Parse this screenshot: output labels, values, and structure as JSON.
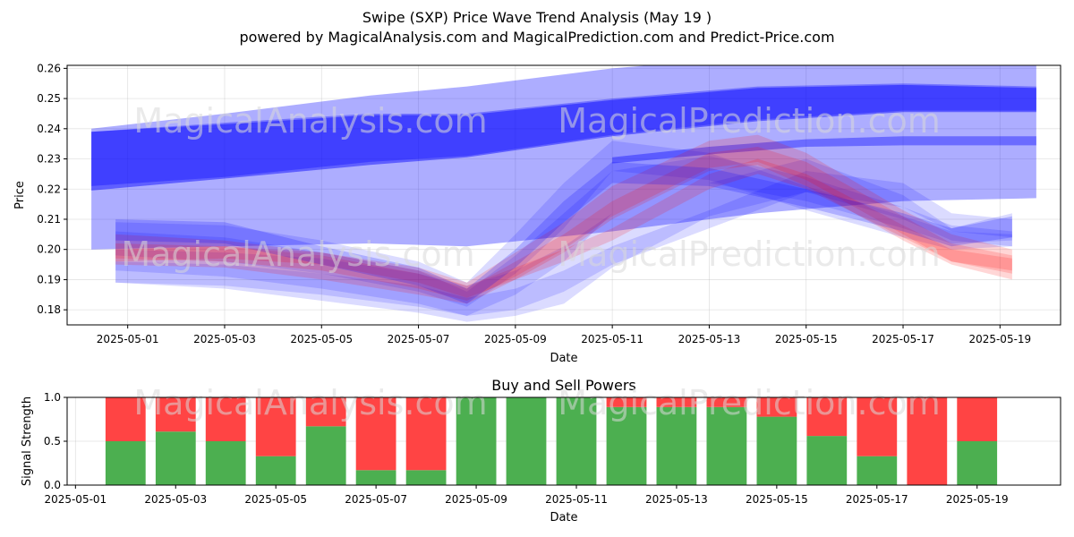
{
  "title": "Swipe (SXP) Price Wave Trend Analysis (May 19 )",
  "subtitle": "powered by MagicalAnalysis.com and MagicalPrediction.com and Predict-Price.com",
  "watermarks": [
    "MagicalAnalysis.com",
    "MagicalPrediction.com"
  ],
  "colors": {
    "blue": "#0000ff",
    "red": "#ff0000",
    "buy": "#4caf50",
    "sell": "#ff4444"
  },
  "chart_data": [
    {
      "type": "area",
      "title": "",
      "xlabel": "Date",
      "ylabel": "Price",
      "ylim": [
        0.175,
        0.261
      ],
      "xlim": [
        "2025-04-29T18:00",
        "2025-05-20T06:00"
      ],
      "x_ticks": [
        "2025-05-01",
        "2025-05-03",
        "2025-05-05",
        "2025-05-07",
        "2025-05-09",
        "2025-05-11",
        "2025-05-13",
        "2025-05-15",
        "2025-05-17",
        "2025-05-19"
      ],
      "y_ticks": [
        0.18,
        0.19,
        0.2,
        0.21,
        0.22,
        0.23,
        0.24,
        0.25,
        0.26
      ],
      "grid": true,
      "bands": [
        {
          "color": "blue",
          "opacity": 0.32,
          "x": [
            "2025-04-30T06:00",
            "2025-05-03",
            "2025-05-06",
            "2025-05-08",
            "2025-05-11",
            "2025-05-14",
            "2025-05-17",
            "2025-05-19T18:00"
          ],
          "upper": [
            0.24,
            0.245,
            0.251,
            0.254,
            0.26,
            0.264,
            0.264,
            0.262
          ],
          "lower": [
            0.2,
            0.201,
            0.202,
            0.201,
            0.206,
            0.212,
            0.216,
            0.217
          ]
        },
        {
          "color": "blue",
          "opacity": 0.32,
          "x": [
            "2025-04-30T06:00",
            "2025-05-03",
            "2025-05-06",
            "2025-05-08",
            "2025-05-11",
            "2025-05-14",
            "2025-05-17",
            "2025-05-19T18:00"
          ],
          "upper": [
            0.239,
            0.242,
            0.245,
            0.245,
            0.25,
            0.254,
            0.255,
            0.254
          ],
          "lower": [
            0.221,
            0.224,
            0.229,
            0.231,
            0.238,
            0.243,
            0.246,
            0.246
          ]
        },
        {
          "color": "blue",
          "opacity": 0.45,
          "x": [
            "2025-04-30T06:00",
            "2025-05-03",
            "2025-05-06",
            "2025-05-08",
            "2025-05-11",
            "2025-05-14",
            "2025-05-17",
            "2025-05-19T18:00"
          ],
          "upper": [
            0.239,
            0.2415,
            0.2445,
            0.2445,
            0.2495,
            0.2535,
            0.2545,
            0.2535
          ],
          "lower": [
            0.2195,
            0.2235,
            0.228,
            0.2305,
            0.2375,
            0.2425,
            0.2455,
            0.2455
          ]
        },
        {
          "color": "blue",
          "opacity": 0.38,
          "x": [
            "2025-05-11",
            "2025-05-13",
            "2025-05-15",
            "2025-05-17",
            "2025-05-19T18:00"
          ],
          "upper": [
            0.2305,
            0.234,
            0.2365,
            0.2375,
            0.2375
          ],
          "lower": [
            0.2285,
            0.2315,
            0.234,
            0.2345,
            0.2345
          ]
        },
        {
          "color": "blue",
          "opacity": 0.14,
          "x": [
            "2025-04-30T18:00",
            "2025-05-03",
            "2025-05-05",
            "2025-05-07",
            "2025-05-08",
            "2025-05-09",
            "2025-05-10",
            "2025-05-11",
            "2025-05-13",
            "2025-05-15",
            "2025-05-17",
            "2025-05-18",
            "2025-05-19T06:00"
          ],
          "upper": [
            0.2,
            0.199,
            0.197,
            0.192,
            0.188,
            0.193,
            0.201,
            0.212,
            0.222,
            0.23,
            0.218,
            0.207,
            0.212
          ],
          "lower": [
            0.189,
            0.187,
            0.183,
            0.179,
            0.176,
            0.178,
            0.182,
            0.194,
            0.211,
            0.219,
            0.21,
            0.203,
            0.201
          ]
        },
        {
          "color": "blue",
          "opacity": 0.14,
          "x": [
            "2025-04-30T18:00",
            "2025-05-03",
            "2025-05-05",
            "2025-05-07",
            "2025-05-08",
            "2025-05-09",
            "2025-05-10",
            "2025-05-11",
            "2025-05-13",
            "2025-05-15",
            "2025-05-17",
            "2025-05-18",
            "2025-05-19T06:00"
          ],
          "upper": [
            0.206,
            0.204,
            0.199,
            0.193,
            0.186,
            0.198,
            0.212,
            0.226,
            0.231,
            0.224,
            0.214,
            0.208,
            0.206
          ],
          "lower": [
            0.193,
            0.191,
            0.187,
            0.182,
            0.178,
            0.185,
            0.196,
            0.212,
            0.222,
            0.216,
            0.207,
            0.202,
            0.203
          ]
        },
        {
          "color": "blue",
          "opacity": 0.14,
          "x": [
            "2025-04-30T18:00",
            "2025-05-03",
            "2025-05-05",
            "2025-05-07",
            "2025-05-08",
            "2025-05-09",
            "2025-05-10",
            "2025-05-11",
            "2025-05-13",
            "2025-05-15",
            "2025-05-17",
            "2025-05-18",
            "2025-05-19T06:00"
          ],
          "upper": [
            0.209,
            0.208,
            0.203,
            0.196,
            0.189,
            0.205,
            0.222,
            0.236,
            0.232,
            0.221,
            0.211,
            0.206,
            0.205
          ],
          "lower": [
            0.198,
            0.196,
            0.192,
            0.186,
            0.181,
            0.192,
            0.207,
            0.226,
            0.223,
            0.213,
            0.204,
            0.2,
            0.201
          ]
        },
        {
          "color": "blue",
          "opacity": 0.14,
          "x": [
            "2025-04-30T18:00",
            "2025-05-03",
            "2025-05-05",
            "2025-05-07",
            "2025-05-08",
            "2025-05-09",
            "2025-05-10",
            "2025-05-11",
            "2025-05-13",
            "2025-05-15",
            "2025-05-17",
            "2025-05-18",
            "2025-05-19T06:00"
          ],
          "upper": [
            0.196,
            0.195,
            0.192,
            0.188,
            0.184,
            0.187,
            0.193,
            0.201,
            0.213,
            0.226,
            0.222,
            0.212,
            0.21
          ],
          "lower": [
            0.189,
            0.188,
            0.185,
            0.181,
            0.178,
            0.18,
            0.186,
            0.195,
            0.207,
            0.219,
            0.214,
            0.206,
            0.204
          ]
        },
        {
          "color": "red",
          "opacity": 0.16,
          "x": [
            "2025-04-30T18:00",
            "2025-05-03",
            "2025-05-05",
            "2025-05-07",
            "2025-05-08",
            "2025-05-09",
            "2025-05-10",
            "2025-05-11",
            "2025-05-13",
            "2025-05-14",
            "2025-05-15",
            "2025-05-17",
            "2025-05-18",
            "2025-05-19T06:00"
          ],
          "upper": [
            0.205,
            0.203,
            0.199,
            0.194,
            0.189,
            0.199,
            0.209,
            0.221,
            0.236,
            0.238,
            0.232,
            0.213,
            0.205,
            0.2
          ],
          "lower": [
            0.195,
            0.194,
            0.19,
            0.185,
            0.182,
            0.19,
            0.199,
            0.21,
            0.226,
            0.228,
            0.221,
            0.203,
            0.195,
            0.19
          ]
        },
        {
          "color": "red",
          "opacity": 0.16,
          "x": [
            "2025-04-30T18:00",
            "2025-05-03",
            "2025-05-05",
            "2025-05-07",
            "2025-05-08",
            "2025-05-09",
            "2025-05-10",
            "2025-05-11",
            "2025-05-13",
            "2025-05-14",
            "2025-05-15",
            "2025-05-17",
            "2025-05-18",
            "2025-05-19T06:00"
          ],
          "upper": [
            0.202,
            0.201,
            0.198,
            0.192,
            0.187,
            0.196,
            0.205,
            0.216,
            0.232,
            0.234,
            0.229,
            0.211,
            0.202,
            0.198
          ],
          "lower": [
            0.197,
            0.196,
            0.193,
            0.187,
            0.183,
            0.191,
            0.2,
            0.211,
            0.227,
            0.229,
            0.223,
            0.205,
            0.196,
            0.192
          ]
        },
        {
          "color": "red",
          "opacity": 0.16,
          "x": [
            "2025-04-30T18:00",
            "2025-05-03",
            "2025-05-05",
            "2025-05-07",
            "2025-05-08",
            "2025-05-09",
            "2025-05-10",
            "2025-05-11",
            "2025-05-13",
            "2025-05-14",
            "2025-05-15",
            "2025-05-17",
            "2025-05-18",
            "2025-05-19T06:00"
          ],
          "upper": [
            0.2,
            0.201,
            0.199,
            0.193,
            0.188,
            0.194,
            0.2,
            0.207,
            0.225,
            0.23,
            0.225,
            0.208,
            0.2,
            0.197
          ],
          "lower": [
            0.196,
            0.197,
            0.195,
            0.189,
            0.184,
            0.19,
            0.196,
            0.203,
            0.22,
            0.225,
            0.22,
            0.204,
            0.196,
            0.193
          ]
        },
        {
          "color": "blue",
          "opacity": 0.2,
          "x": [
            "2025-04-30T18:00",
            "2025-05-03",
            "2025-05-05",
            "2025-05-07",
            "2025-05-08",
            "2025-05-09",
            "2025-05-10",
            "2025-05-11",
            "2025-05-13",
            "2025-05-15",
            "2025-05-17",
            "2025-05-18",
            "2025-05-19T06:00"
          ],
          "upper": [
            0.21,
            0.209,
            0.201,
            0.194,
            0.187,
            0.2,
            0.216,
            0.229,
            0.227,
            0.22,
            0.212,
            0.207,
            0.211
          ],
          "lower": [
            0.203,
            0.202,
            0.195,
            0.188,
            0.182,
            0.194,
            0.209,
            0.222,
            0.221,
            0.214,
            0.206,
            0.201,
            0.204
          ]
        }
      ]
    },
    {
      "type": "bar",
      "title": "Buy and Sell Powers",
      "xlabel": "Date",
      "ylabel": "Signal Strength",
      "ylim": [
        0,
        1
      ],
      "xlim": [
        "2025-04-30T20:00",
        "2025-05-20T16:00"
      ],
      "x_ticks": [
        "2025-05-01",
        "2025-05-03",
        "2025-05-05",
        "2025-05-07",
        "2025-05-09",
        "2025-05-11",
        "2025-05-13",
        "2025-05-15",
        "2025-05-17",
        "2025-05-19"
      ],
      "y_ticks": [
        0.0,
        0.5,
        1.0
      ],
      "categories": [
        "2025-05-02",
        "2025-05-03",
        "2025-05-04",
        "2025-05-05",
        "2025-05-06",
        "2025-05-07",
        "2025-05-08",
        "2025-05-09",
        "2025-05-10",
        "2025-05-11",
        "2025-05-12",
        "2025-05-13",
        "2025-05-14",
        "2025-05-15",
        "2025-05-16",
        "2025-05-17",
        "2025-05-18",
        "2025-05-19"
      ],
      "series": [
        {
          "color": "buy",
          "values": [
            0.5,
            0.61,
            0.5,
            0.33,
            0.67,
            0.17,
            0.17,
            1.0,
            1.0,
            1.0,
            0.89,
            0.89,
            0.89,
            0.78,
            0.56,
            0.33,
            0.0,
            0.5
          ]
        },
        {
          "color": "sell",
          "values": [
            0.5,
            0.39,
            0.5,
            0.67,
            0.33,
            0.83,
            0.83,
            0.0,
            0.0,
            0.0,
            0.11,
            0.11,
            0.11,
            0.22,
            0.44,
            0.67,
            1.0,
            0.5
          ]
        }
      ]
    }
  ]
}
